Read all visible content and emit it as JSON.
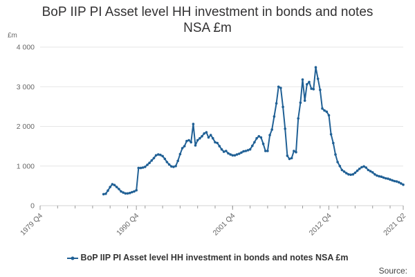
{
  "chart_data": {
    "type": "line",
    "title_line1": "BoP IIP PI Asset level HH investment in bonds and notes",
    "title_line2": "NSA £m",
    "ylabel": "£m",
    "xlabel": "",
    "ylim": [
      0,
      4000
    ],
    "yticks": [
      0,
      1000,
      2000,
      3000,
      4000
    ],
    "ytick_labels": [
      "0",
      "1 000",
      "2 000",
      "3 000",
      "4 000"
    ],
    "xticks": [
      "1979 Q4",
      "1990 Q4",
      "2001 Q4",
      "2012 Q4",
      "2021 Q2"
    ],
    "xtick_values": [
      1979.75,
      1990.75,
      2001.75,
      2012.75,
      2021.25
    ],
    "grid": true,
    "legend_position": "bottom",
    "color": "#206095",
    "series": [
      {
        "name": "BoP IIP PI Asset level HH investment in bonds and notes NSA £m",
        "points": [
          [
            1987.0,
            290
          ],
          [
            1987.25,
            300
          ],
          [
            1987.5,
            380
          ],
          [
            1987.75,
            470
          ],
          [
            1988.0,
            540
          ],
          [
            1988.25,
            520
          ],
          [
            1988.5,
            470
          ],
          [
            1988.75,
            420
          ],
          [
            1989.0,
            360
          ],
          [
            1989.25,
            330
          ],
          [
            1989.5,
            310
          ],
          [
            1989.75,
            310
          ],
          [
            1990.0,
            320
          ],
          [
            1990.25,
            340
          ],
          [
            1990.5,
            360
          ],
          [
            1990.75,
            390
          ],
          [
            1991.0,
            950
          ],
          [
            1991.25,
            950
          ],
          [
            1991.5,
            960
          ],
          [
            1991.75,
            980
          ],
          [
            1992.0,
            1030
          ],
          [
            1992.25,
            1080
          ],
          [
            1992.5,
            1140
          ],
          [
            1992.75,
            1200
          ],
          [
            1993.0,
            1270
          ],
          [
            1993.25,
            1290
          ],
          [
            1993.5,
            1280
          ],
          [
            1993.75,
            1250
          ],
          [
            1994.0,
            1180
          ],
          [
            1994.25,
            1100
          ],
          [
            1994.5,
            1040
          ],
          [
            1994.75,
            990
          ],
          [
            1995.0,
            980
          ],
          [
            1995.25,
            1000
          ],
          [
            1995.5,
            1130
          ],
          [
            1995.75,
            1300
          ],
          [
            1996.0,
            1450
          ],
          [
            1996.25,
            1500
          ],
          [
            1996.5,
            1630
          ],
          [
            1996.75,
            1650
          ],
          [
            1997.0,
            1600
          ],
          [
            1997.25,
            2060
          ],
          [
            1997.5,
            1520
          ],
          [
            1997.75,
            1650
          ],
          [
            1998.0,
            1700
          ],
          [
            1998.25,
            1750
          ],
          [
            1998.5,
            1820
          ],
          [
            1998.75,
            1850
          ],
          [
            1999.0,
            1720
          ],
          [
            1999.25,
            1780
          ],
          [
            1999.5,
            1700
          ],
          [
            1999.75,
            1600
          ],
          [
            2000.0,
            1580
          ],
          [
            2000.25,
            1500
          ],
          [
            2000.5,
            1420
          ],
          [
            2000.75,
            1360
          ],
          [
            2001.0,
            1380
          ],
          [
            2001.25,
            1320
          ],
          [
            2001.5,
            1290
          ],
          [
            2001.75,
            1270
          ],
          [
            2002.0,
            1270
          ],
          [
            2002.25,
            1290
          ],
          [
            2002.5,
            1310
          ],
          [
            2002.75,
            1340
          ],
          [
            2003.0,
            1370
          ],
          [
            2003.25,
            1380
          ],
          [
            2003.5,
            1400
          ],
          [
            2003.75,
            1420
          ],
          [
            2004.0,
            1510
          ],
          [
            2004.25,
            1600
          ],
          [
            2004.5,
            1700
          ],
          [
            2004.75,
            1750
          ],
          [
            2005.0,
            1720
          ],
          [
            2005.25,
            1560
          ],
          [
            2005.5,
            1380
          ],
          [
            2005.75,
            1380
          ],
          [
            2006.0,
            1780
          ],
          [
            2006.25,
            1920
          ],
          [
            2006.5,
            2250
          ],
          [
            2006.75,
            2580
          ],
          [
            2007.0,
            3000
          ],
          [
            2007.25,
            2970
          ],
          [
            2007.5,
            2490
          ],
          [
            2007.75,
            1940
          ],
          [
            2008.0,
            1260
          ],
          [
            2008.25,
            1180
          ],
          [
            2008.5,
            1200
          ],
          [
            2008.75,
            1380
          ],
          [
            2009.0,
            1350
          ],
          [
            2009.25,
            2200
          ],
          [
            2009.5,
            2600
          ],
          [
            2009.75,
            3180
          ],
          [
            2010.0,
            2650
          ],
          [
            2010.25,
            3060
          ],
          [
            2010.5,
            3120
          ],
          [
            2010.75,
            2950
          ],
          [
            2011.0,
            2940
          ],
          [
            2011.25,
            3490
          ],
          [
            2011.5,
            3200
          ],
          [
            2011.75,
            2920
          ],
          [
            2012.0,
            2450
          ],
          [
            2012.25,
            2400
          ],
          [
            2012.5,
            2370
          ],
          [
            2012.75,
            2280
          ],
          [
            2013.0,
            1800
          ],
          [
            2013.25,
            1580
          ],
          [
            2013.5,
            1290
          ],
          [
            2013.75,
            1100
          ],
          [
            2014.0,
            1000
          ],
          [
            2014.25,
            900
          ],
          [
            2014.5,
            860
          ],
          [
            2014.75,
            820
          ],
          [
            2015.0,
            790
          ],
          [
            2015.25,
            780
          ],
          [
            2015.5,
            790
          ],
          [
            2015.75,
            830
          ],
          [
            2016.0,
            880
          ],
          [
            2016.25,
            930
          ],
          [
            2016.5,
            970
          ],
          [
            2016.75,
            990
          ],
          [
            2017.0,
            960
          ],
          [
            2017.25,
            900
          ],
          [
            2017.5,
            870
          ],
          [
            2017.75,
            840
          ],
          [
            2018.0,
            790
          ],
          [
            2018.25,
            760
          ],
          [
            2018.5,
            740
          ],
          [
            2018.75,
            730
          ],
          [
            2019.0,
            710
          ],
          [
            2019.25,
            690
          ],
          [
            2019.5,
            680
          ],
          [
            2019.75,
            660
          ],
          [
            2020.0,
            640
          ],
          [
            2020.25,
            620
          ],
          [
            2020.5,
            610
          ],
          [
            2020.75,
            590
          ],
          [
            2021.0,
            560
          ],
          [
            2021.25,
            530
          ]
        ]
      }
    ]
  },
  "source_label": "Source:"
}
